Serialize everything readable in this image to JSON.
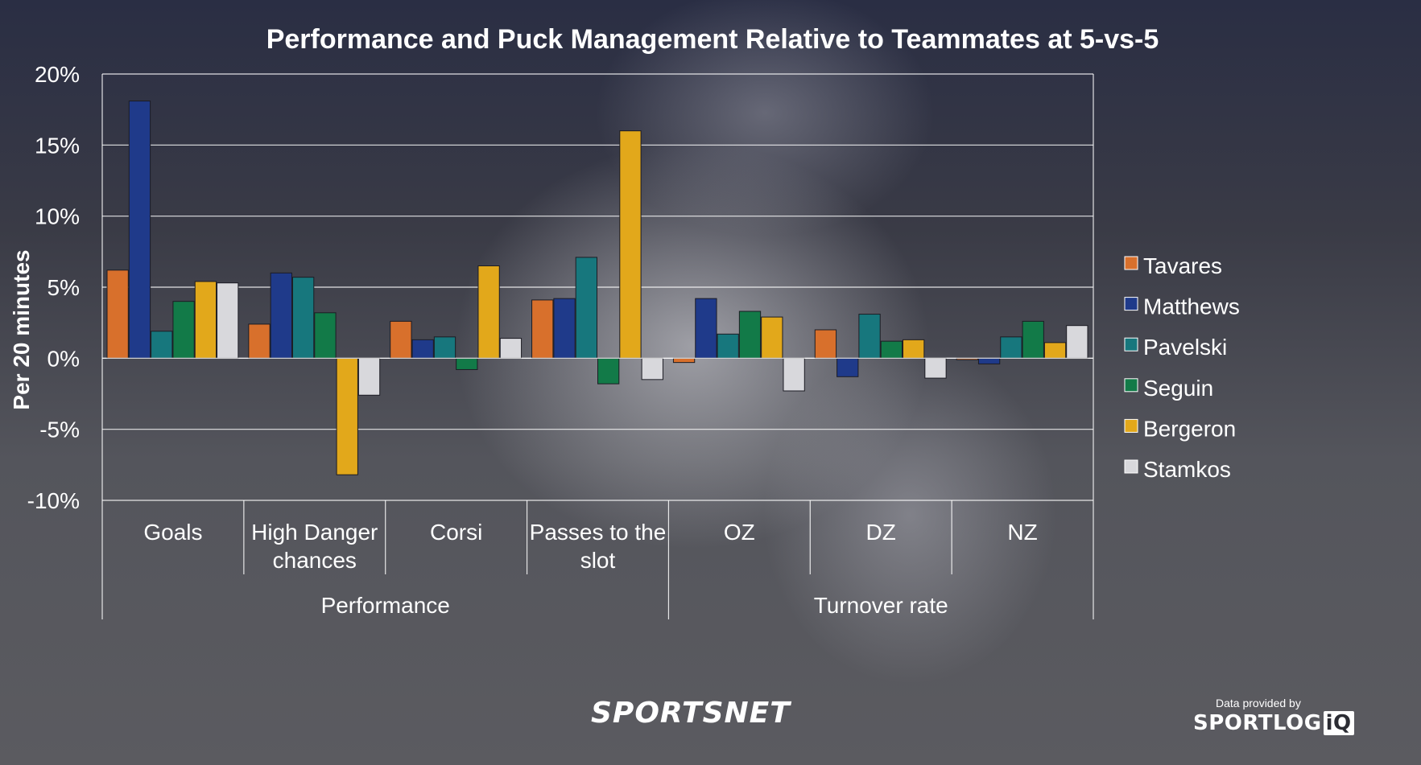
{
  "chart_data": {
    "type": "bar",
    "title": "Performance and Puck Management Relative to Teammates at 5-vs-5",
    "ylabel": "Per 20 minutes",
    "xlabel": "",
    "ylim": [
      -10,
      20
    ],
    "yticks": [
      -10,
      -5,
      0,
      5,
      10,
      15,
      20
    ],
    "ytick_labels": [
      "-10%",
      "-5%",
      "0%",
      "5%",
      "10%",
      "15%",
      "20%"
    ],
    "grid": true,
    "legend_position": "right",
    "categories": [
      "Goals",
      "High Danger chances",
      "Corsi",
      "Passes to the slot",
      "OZ",
      "DZ",
      "NZ"
    ],
    "category_lines": [
      [
        "Goals"
      ],
      [
        "High Danger",
        "chances"
      ],
      [
        "Corsi"
      ],
      [
        "Passes to the",
        "slot"
      ],
      [
        "OZ"
      ],
      [
        "DZ"
      ],
      [
        "NZ"
      ]
    ],
    "groups": [
      {
        "label": "Performance",
        "categories": [
          "Goals",
          "High Danger chances",
          "Corsi",
          "Passes to the slot"
        ]
      },
      {
        "label": "Turnover rate",
        "categories": [
          "OZ",
          "DZ",
          "NZ"
        ]
      }
    ],
    "series": [
      {
        "name": "Tavares",
        "color": "#d8702c",
        "values": [
          6.2,
          2.4,
          2.6,
          4.1,
          -0.3,
          2.0,
          -0.1
        ]
      },
      {
        "name": "Matthews",
        "color": "#1f3a8a",
        "values": [
          18.1,
          6.0,
          1.3,
          4.2,
          4.2,
          -1.3,
          -0.4
        ]
      },
      {
        "name": "Pavelski",
        "color": "#17777d",
        "values": [
          1.9,
          5.7,
          1.5,
          7.1,
          1.7,
          3.1,
          1.5
        ]
      },
      {
        "name": "Seguin",
        "color": "#127a48",
        "values": [
          4.0,
          3.2,
          -0.8,
          -1.8,
          3.3,
          1.2,
          2.6
        ]
      },
      {
        "name": "Bergeron",
        "color": "#e2a81b",
        "values": [
          5.4,
          -8.2,
          6.5,
          16.0,
          2.9,
          1.3,
          1.1
        ]
      },
      {
        "name": "Stamkos",
        "color": "#d8d8dc",
        "values": [
          5.3,
          -2.6,
          1.4,
          -1.5,
          -2.3,
          -1.4,
          2.3
        ]
      }
    ]
  },
  "branding": {
    "network_logo": "SPORTSNET",
    "data_credit": "Data provided by",
    "partner_logo": "SPORTLOGiQ"
  }
}
